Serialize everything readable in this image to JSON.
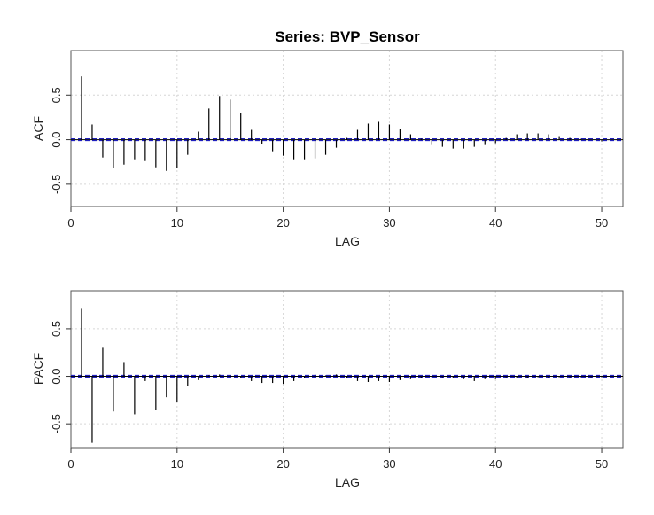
{
  "chart_data": [
    {
      "type": "bar",
      "title": "Series:  BVP_Sensor",
      "xlabel": "LAG",
      "ylabel": "ACF",
      "xlim": [
        0,
        52
      ],
      "ylim": [
        -0.75,
        1.0
      ],
      "xticks": [
        0,
        10,
        20,
        30,
        40,
        50
      ],
      "yticks": [
        -0.5,
        0.0,
        0.5
      ],
      "ytick_labels": [
        "-0.5",
        "0.0",
        "0.5"
      ],
      "grid": true,
      "confidence_band": 0.01,
      "colors": {
        "bars": "#000000",
        "zero_line": "#000000",
        "band": "#1f1fbf",
        "grid": "#d6d6d6",
        "frame": "#555555"
      },
      "x": [
        1,
        2,
        3,
        4,
        5,
        6,
        7,
        8,
        9,
        10,
        11,
        12,
        13,
        14,
        15,
        16,
        17,
        18,
        19,
        20,
        21,
        22,
        23,
        24,
        25,
        26,
        27,
        28,
        29,
        30,
        31,
        32,
        33,
        34,
        35,
        36,
        37,
        38,
        39,
        40,
        41,
        42,
        43,
        44,
        45,
        46,
        47,
        48,
        49,
        50
      ],
      "values": [
        0.71,
        0.17,
        -0.2,
        -0.32,
        -0.28,
        -0.22,
        -0.24,
        -0.31,
        -0.35,
        -0.32,
        -0.17,
        0.09,
        0.35,
        0.49,
        0.45,
        0.3,
        0.11,
        -0.05,
        -0.13,
        -0.18,
        -0.22,
        -0.22,
        -0.21,
        -0.17,
        -0.09,
        0.02,
        0.11,
        0.18,
        0.2,
        0.17,
        0.12,
        0.06,
        0.01,
        -0.06,
        -0.08,
        -0.1,
        -0.1,
        -0.08,
        -0.06,
        -0.04,
        0.02,
        0.06,
        0.07,
        0.07,
        0.06,
        0.04,
        0.02,
        0.01,
        0.0,
        -0.02
      ]
    },
    {
      "type": "bar",
      "title": "",
      "xlabel": "LAG",
      "ylabel": "PACF",
      "xlim": [
        0,
        52
      ],
      "ylim": [
        -0.75,
        0.9
      ],
      "xticks": [
        0,
        10,
        20,
        30,
        40,
        50
      ],
      "yticks": [
        -0.5,
        0.0,
        0.5
      ],
      "ytick_labels": [
        "-0.5",
        "0.0",
        "0.5"
      ],
      "grid": true,
      "confidence_band": 0.01,
      "colors": {
        "bars": "#000000",
        "zero_line": "#000000",
        "band": "#1f1fbf",
        "grid": "#d6d6d6",
        "frame": "#555555"
      },
      "x": [
        1,
        2,
        3,
        4,
        5,
        6,
        7,
        8,
        9,
        10,
        11,
        12,
        13,
        14,
        15,
        16,
        17,
        18,
        19,
        20,
        21,
        22,
        23,
        24,
        25,
        26,
        27,
        28,
        29,
        30,
        31,
        32,
        33,
        34,
        35,
        36,
        37,
        38,
        39,
        40,
        41,
        42,
        43,
        44,
        45,
        46,
        47,
        48,
        49,
        50
      ],
      "values": [
        0.71,
        -0.7,
        0.3,
        -0.37,
        0.15,
        -0.4,
        -0.05,
        -0.35,
        -0.22,
        -0.27,
        -0.1,
        -0.04,
        0.01,
        0.02,
        0.01,
        -0.02,
        -0.05,
        -0.07,
        -0.07,
        -0.08,
        -0.05,
        -0.02,
        0.02,
        0.01,
        0.02,
        -0.02,
        -0.05,
        -0.06,
        -0.05,
        -0.06,
        -0.04,
        -0.03,
        -0.02,
        -0.01,
        -0.01,
        -0.02,
        -0.03,
        -0.05,
        -0.03,
        -0.03,
        -0.01,
        -0.02,
        -0.02,
        -0.01,
        -0.02,
        -0.01,
        -0.01,
        -0.01,
        -0.01,
        -0.01
      ]
    }
  ]
}
